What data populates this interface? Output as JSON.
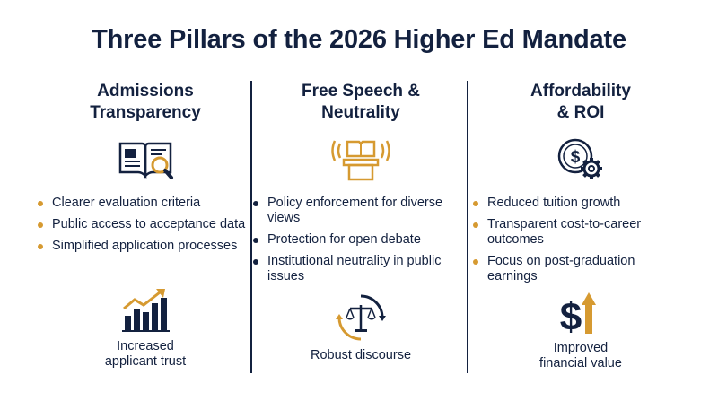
{
  "title": "Three Pillars of the 2026 Higher Ed Mandate",
  "colors": {
    "navy": "#13213f",
    "gold": "#d69a31"
  },
  "pillars": [
    {
      "heading_line1": "Admissions",
      "heading_line2": "Transparency",
      "top_icon": "book-magnifier-icon",
      "bullet_color": "gold",
      "bullets": [
        "Clearer evaluation criteria",
        "Public access to acceptance data",
        "Simplified application processes"
      ],
      "bottom_icon": "bar-chart-growth-icon",
      "caption_line1": "Increased",
      "caption_line2": "applicant trust"
    },
    {
      "heading_line1": "Free Speech &",
      "heading_line2": "Neutrality",
      "top_icon": "podium-book-icon",
      "bullet_color": "navy",
      "bullets": [
        "Policy enforcement for diverse views",
        "Protection for open debate",
        "Institutional neutrality in public issues"
      ],
      "bottom_icon": "balance-scale-icon",
      "caption_line1": "Robust discourse",
      "caption_line2": ""
    },
    {
      "heading_line1": "Affordability",
      "heading_line2": "& ROI",
      "top_icon": "dollar-gear-icon",
      "bullet_color": "gold",
      "bullets": [
        "Reduced tuition growth",
        "Transparent cost-to-career outcomes",
        "Focus on post-graduation earnings"
      ],
      "bottom_icon": "dollar-arrow-up-icon",
      "caption_line1": "Improved",
      "caption_line2": "financial value"
    }
  ]
}
